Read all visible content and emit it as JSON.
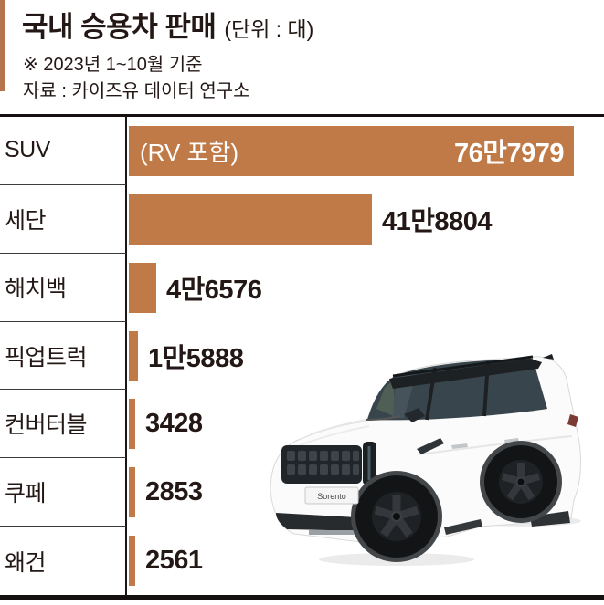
{
  "header": {
    "title": "국내 승용차 판매",
    "unit": "(단위 : 대)",
    "note": "※ 2023년 1~10월 기준",
    "source": "자료 : 카이즈유 데이터 연구소"
  },
  "chart_data": {
    "type": "bar",
    "orientation": "horizontal",
    "title": "국내 승용차 판매",
    "unit_label": "대",
    "categories": [
      "SUV",
      "세단",
      "해치백",
      "픽업트럭",
      "컨버터블",
      "쿠페",
      "왜건"
    ],
    "values": [
      767979,
      418804,
      46576,
      15888,
      3428,
      2853,
      2561
    ],
    "value_labels": [
      "76만7979",
      "41만8804",
      "4만6576",
      "1만5888",
      "3428",
      "2853",
      "2561"
    ],
    "bar_annotations": [
      "(RV 포함)",
      "",
      "",
      "",
      "",
      "",
      ""
    ],
    "xlim": [
      0,
      767979
    ],
    "grid": false,
    "legend": false
  },
  "car_image": {
    "plate_text": "Sorento"
  },
  "colors": {
    "bar": "#c07a47",
    "accent_bar": "#b5744e",
    "text": "#231815",
    "rule": "#151110"
  }
}
